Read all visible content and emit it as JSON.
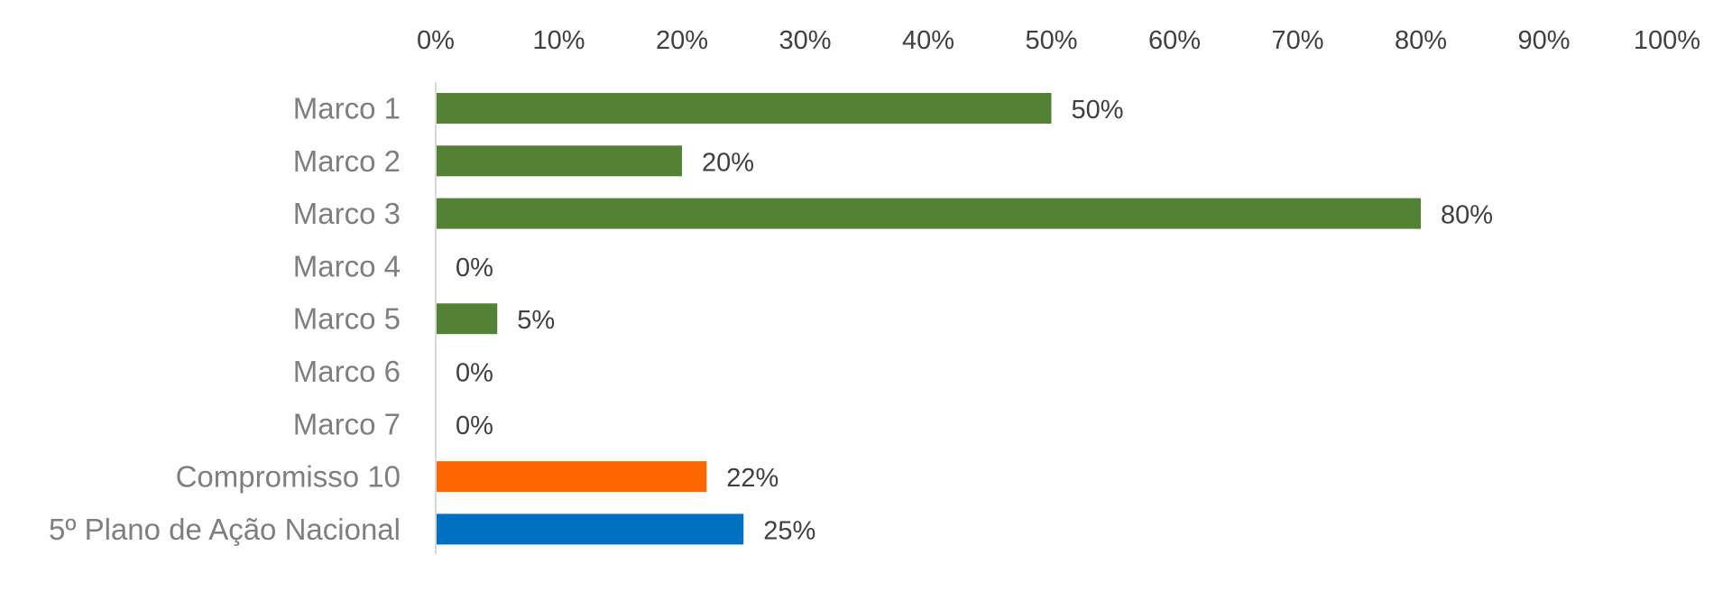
{
  "chart_data": {
    "type": "bar",
    "orientation": "horizontal",
    "x_axis_position": "top",
    "grid": false,
    "legend": "none",
    "xlim": [
      0,
      100
    ],
    "x_ticks": [
      "0%",
      "10%",
      "20%",
      "30%",
      "40%",
      "50%",
      "60%",
      "70%",
      "80%",
      "90%",
      "100%"
    ],
    "categories": [
      "Marco 1",
      "Marco 2",
      "Marco 3",
      "Marco 4",
      "Marco 5",
      "Marco 6",
      "Marco 7",
      "Compromisso 10",
      "5º Plano de Ação Nacional"
    ],
    "values": [
      50,
      20,
      80,
      0,
      5,
      0,
      0,
      22,
      25
    ],
    "data_labels": [
      "50%",
      "20%",
      "80%",
      "0%",
      "5%",
      "0%",
      "0%",
      "22%",
      "25%"
    ],
    "colors": [
      "#548235",
      "#548235",
      "#548235",
      "#548235",
      "#548235",
      "#548235",
      "#548235",
      "#ff6600",
      "#0070c0"
    ],
    "axis_line_color": "#d9d9d9"
  }
}
